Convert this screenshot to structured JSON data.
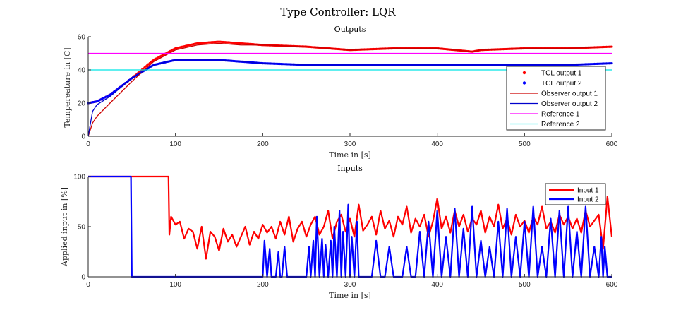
{
  "figure_title": "Type Controller: LQR",
  "colors": {
    "tcl1": "#ff0000",
    "tcl2": "#0000ff",
    "obs1": "#cc0000",
    "obs2": "#0000cc",
    "ref1": "#ff00ff",
    "ref2": "#00e5e5"
  },
  "chart_data": [
    {
      "type": "line",
      "title": "Outputs",
      "xlabel": "Time in [s]",
      "ylabel": "Tempereature in [C]",
      "xlim": [
        0,
        600
      ],
      "ylim": [
        0,
        60
      ],
      "xticks": [
        0,
        100,
        200,
        300,
        400,
        500,
        600
      ],
      "yticks": [
        0,
        20,
        40,
        60
      ],
      "legend_position": "bottom-right",
      "grid": false,
      "series": [
        {
          "name": "TCL output 1",
          "style": "dots",
          "color_key": "tcl1",
          "x": [
            0,
            10,
            25,
            50,
            75,
            100,
            125,
            150,
            175,
            200,
            250,
            300,
            350,
            400,
            440,
            450,
            500,
            550,
            600
          ],
          "y": [
            20,
            21,
            25,
            35,
            46,
            53,
            56,
            57,
            56,
            55,
            54,
            52,
            53,
            53,
            51,
            52,
            53,
            53,
            54
          ]
        },
        {
          "name": "TCL output 2",
          "style": "dots",
          "color_key": "tcl2",
          "x": [
            0,
            10,
            25,
            50,
            75,
            100,
            125,
            150,
            175,
            200,
            250,
            300,
            350,
            400,
            450,
            500,
            550,
            600
          ],
          "y": [
            20,
            21,
            25,
            35,
            43,
            46,
            46,
            46,
            45,
            44,
            43,
            43,
            43,
            43,
            43,
            43,
            43,
            44
          ]
        },
        {
          "name": "Observer output 1",
          "style": "line",
          "color_key": "obs1",
          "x": [
            0,
            5,
            10,
            25,
            50,
            75,
            100,
            125,
            150,
            175,
            200,
            250,
            300,
            350,
            400,
            440,
            450,
            500,
            550,
            600
          ],
          "y": [
            0,
            8,
            12,
            20,
            33,
            45,
            52,
            55,
            56,
            55,
            55,
            54,
            52,
            53,
            53,
            51,
            52,
            53,
            53,
            54
          ]
        },
        {
          "name": "Observer output 2",
          "style": "line",
          "color_key": "obs2",
          "x": [
            0,
            5,
            10,
            25,
            50,
            75,
            100,
            125,
            150,
            175,
            200,
            250,
            300,
            350,
            400,
            450,
            500,
            550,
            600
          ],
          "y": [
            0,
            15,
            19,
            24,
            35,
            43,
            46,
            46,
            46,
            45,
            44,
            43,
            43,
            43,
            43,
            43,
            43,
            43,
            44
          ]
        },
        {
          "name": "Reference 1",
          "style": "line",
          "color_key": "ref1",
          "x": [
            0,
            600
          ],
          "y": [
            50,
            50
          ]
        },
        {
          "name": "Reference 2",
          "style": "line",
          "color_key": "ref2",
          "x": [
            0,
            600
          ],
          "y": [
            40,
            40
          ]
        }
      ]
    },
    {
      "type": "line",
      "title": "Inputs",
      "xlabel": "Time in [s]",
      "ylabel": "Applied input in [%]",
      "xlim": [
        0,
        600
      ],
      "ylim": [
        0,
        100
      ],
      "xticks": [
        0,
        100,
        200,
        300,
        400,
        500,
        600
      ],
      "yticks": [
        0,
        50,
        100
      ],
      "legend_position": "top-right",
      "grid": false,
      "series": [
        {
          "name": "Input 1",
          "color_key": "tcl1",
          "x": [
            0,
            92,
            93,
            95,
            100,
            105,
            110,
            115,
            120,
            125,
            130,
            135,
            140,
            145,
            150,
            155,
            160,
            165,
            170,
            175,
            180,
            185,
            190,
            195,
            200,
            205,
            210,
            215,
            220,
            225,
            230,
            235,
            240,
            245,
            250,
            255,
            260,
            265,
            270,
            275,
            280,
            285,
            290,
            295,
            300,
            305,
            310,
            315,
            320,
            325,
            330,
            335,
            340,
            345,
            350,
            355,
            360,
            365,
            370,
            375,
            380,
            385,
            390,
            395,
            400,
            405,
            410,
            415,
            420,
            425,
            430,
            435,
            440,
            445,
            450,
            455,
            460,
            465,
            470,
            475,
            480,
            485,
            490,
            495,
            500,
            505,
            510,
            515,
            520,
            525,
            530,
            535,
            540,
            545,
            550,
            555,
            560,
            565,
            570,
            575,
            580,
            585,
            590,
            595,
            600
          ],
          "y": [
            100,
            100,
            42,
            60,
            52,
            55,
            38,
            48,
            45,
            28,
            50,
            18,
            45,
            40,
            26,
            48,
            35,
            42,
            30,
            40,
            50,
            32,
            45,
            38,
            52,
            44,
            50,
            38,
            55,
            42,
            60,
            35,
            48,
            55,
            40,
            52,
            60,
            42,
            50,
            66,
            38,
            55,
            62,
            45,
            58,
            40,
            72,
            46,
            52,
            60,
            42,
            66,
            48,
            56,
            40,
            60,
            52,
            70,
            44,
            58,
            50,
            62,
            40,
            55,
            78,
            48,
            60,
            44,
            66,
            50,
            62,
            45,
            58,
            52,
            66,
            44,
            60,
            50,
            72,
            48,
            58,
            42,
            62,
            50,
            56,
            44,
            60,
            52,
            70,
            48,
            55,
            44,
            62,
            52,
            60,
            48,
            58,
            44,
            66,
            50,
            56,
            62,
            28,
            80,
            40
          ]
        },
        {
          "name": "Input 2",
          "color_key": "tcl2",
          "x": [
            0,
            49,
            50,
            200,
            202,
            205,
            208,
            210,
            215,
            218,
            220,
            222,
            225,
            228,
            230,
            250,
            253,
            255,
            258,
            260,
            262,
            265,
            268,
            270,
            272,
            275,
            278,
            280,
            282,
            285,
            288,
            290,
            292,
            295,
            298,
            300,
            302,
            305,
            308,
            310,
            315,
            320,
            325,
            330,
            335,
            340,
            345,
            350,
            355,
            360,
            365,
            370,
            375,
            380,
            385,
            390,
            395,
            400,
            405,
            410,
            415,
            420,
            425,
            430,
            435,
            440,
            445,
            450,
            455,
            460,
            465,
            470,
            475,
            480,
            485,
            490,
            495,
            500,
            505,
            510,
            515,
            520,
            525,
            530,
            535,
            540,
            545,
            550,
            555,
            560,
            565,
            570,
            575,
            580,
            585,
            588,
            590,
            592,
            595,
            600
          ],
          "y": [
            100,
            100,
            0,
            0,
            36,
            0,
            28,
            0,
            0,
            25,
            0,
            0,
            30,
            0,
            0,
            0,
            30,
            0,
            36,
            0,
            60,
            0,
            38,
            0,
            32,
            0,
            36,
            0,
            50,
            0,
            66,
            0,
            45,
            0,
            72,
            0,
            40,
            0,
            55,
            0,
            0,
            0,
            0,
            36,
            0,
            0,
            30,
            0,
            0,
            0,
            30,
            0,
            0,
            45,
            0,
            55,
            0,
            66,
            0,
            40,
            0,
            68,
            0,
            48,
            0,
            70,
            0,
            36,
            0,
            30,
            0,
            55,
            0,
            68,
            0,
            40,
            0,
            55,
            0,
            70,
            0,
            30,
            0,
            58,
            0,
            66,
            0,
            70,
            0,
            45,
            0,
            70,
            0,
            30,
            0,
            40,
            0,
            30,
            0,
            0
          ]
        }
      ]
    }
  ]
}
